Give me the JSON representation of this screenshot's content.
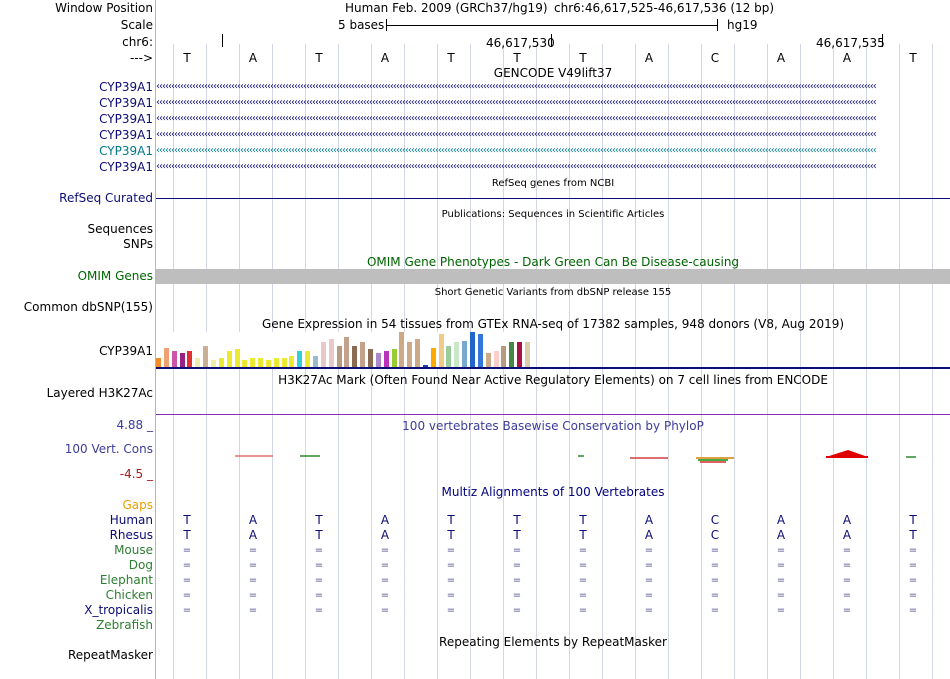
{
  "ruler": {
    "window_position_label": "Window Position",
    "scale_label": "Scale",
    "chr_label": "chr6:",
    "strand_label": "--->",
    "assembly": "Human Feb. 2009 (GRCh37/hg19)",
    "position": "chr6:46,617,525-46,617,536 (12 bp)",
    "scale_text": "5 bases",
    "db": "hg19",
    "tick_530": "46,617,530",
    "tick_535": "46,617,535",
    "bases": [
      "T",
      "A",
      "T",
      "A",
      "T",
      "T",
      "T",
      "A",
      "C",
      "A",
      "A",
      "T"
    ]
  },
  "tracks": {
    "gencode_title": "GENCODE V49lift37",
    "gencode_names": [
      "CYP39A1",
      "CYP39A1",
      "CYP39A1",
      "CYP39A1",
      "CYP39A1",
      "CYP39A1"
    ],
    "refseq_label": "RefSeq Curated",
    "refseq_title": "RefSeq genes from NCBI",
    "pubs_title": "Publications: Sequences in Scientific Articles",
    "sequences_label": "Sequences",
    "snps_label": "SNPs",
    "omim_title": "OMIM Gene Phenotypes - Dark Green Can Be Disease-causing",
    "omim_label": "OMIM Genes",
    "dbsnp_title": "Short Genetic Variants from dbSNP release 155",
    "dbsnp_label": "Common dbSNP(155)",
    "gtex_title": "Gene Expression in 54 tissues from GTEx RNA-seq of 17382 samples, 948 donors (V8, Aug 2019)",
    "gtex_label": "CYP39A1",
    "h3k27ac_title": "H3K27Ac Mark (Often Found Near Active Regulatory Elements) on 7 cell lines from ENCODE",
    "h3k27ac_label": "Layered H3K27Ac",
    "phylop_title": "100 vertebrates Basewise Conservation by PhyloP",
    "phylop_label": "100 Vert. Cons",
    "phylop_max": "4.88 _",
    "phylop_min": "-4.5 _",
    "multiz_title": "Multiz Alignments of 100 Vertebrates",
    "gaps_label": "Gaps",
    "species": [
      "Human",
      "Rhesus",
      "Mouse",
      "Dog",
      "Elephant",
      "Chicken",
      "X_tropicalis",
      "Zebrafish"
    ],
    "human_seq": [
      "T",
      "A",
      "T",
      "A",
      "T",
      "T",
      "T",
      "A",
      "C",
      "A",
      "A",
      "T"
    ],
    "rhesus_seq": [
      "T",
      "A",
      "T",
      "A",
      "T",
      "T",
      "T",
      "A",
      "C",
      "A",
      "A",
      "T"
    ],
    "dash_symbol": "=",
    "rmsk_title": "Repeating Elements by RepeatMasker",
    "rmsk_label": "RepeatMasker"
  },
  "gtex_colors": [
    "#f28c28",
    "#f0a070",
    "#cc55aa",
    "#992288",
    "#e03030",
    "#eeeeaa",
    "#c9b094",
    "#eeeeaa",
    "#eaea33",
    "#eaea33",
    "#eaea33",
    "#eaea33",
    "#eaea33",
    "#eaea33",
    "#eaea33",
    "#eaea33",
    "#eaea33",
    "#eaea33",
    "#33ccdd",
    "#eaea33",
    "#99bbcc",
    "#e8c8c8",
    "#e8c8c8",
    "#b89a7e",
    "#c4a18a",
    "#8b6a52",
    "#c4a18a",
    "#8b6a52",
    "#aa88cc",
    "#bb33bb",
    "#99cc33",
    "#ccaa88",
    "#ccaa88",
    "#ccaa88",
    "#2244aa",
    "#ffaa00",
    "#eecc88",
    "#99cc99",
    "#c8e8c8",
    "#77aacc",
    "#2266cc",
    "#3377dd",
    "#ccaa88",
    "#ffcccc",
    "#b89a7e",
    "#448844",
    "#aa1144",
    "#ddccaa"
  ],
  "gtex_values": [
    0.25,
    0.55,
    0.45,
    0.4,
    0.45,
    0.25,
    0.6,
    0.2,
    0.25,
    0.45,
    0.5,
    0.2,
    0.25,
    0.25,
    0.2,
    0.25,
    0.25,
    0.3,
    0.45,
    0.45,
    0.3,
    0.7,
    0.8,
    0.6,
    0.85,
    0.6,
    0.7,
    0.5,
    0.4,
    0.45,
    0.5,
    1.0,
    0.7,
    0.8,
    0.05,
    0.55,
    0.95,
    0.6,
    0.7,
    0.75,
    1.0,
    0.95,
    0.4,
    0.45,
    0.6,
    0.7,
    0.7,
    0.7
  ],
  "colors": {
    "gene_navy": "#0c0c78",
    "gene_teal": "#007a8a",
    "omim_green": "#006400",
    "title_navy": "#000080",
    "phylop_blue": "#3c3c9a",
    "cons_red": "#a02020",
    "gaps_orange": "#e8a000",
    "species_green": "#2e7d32",
    "h3k_purple": "#8c2ab4"
  }
}
